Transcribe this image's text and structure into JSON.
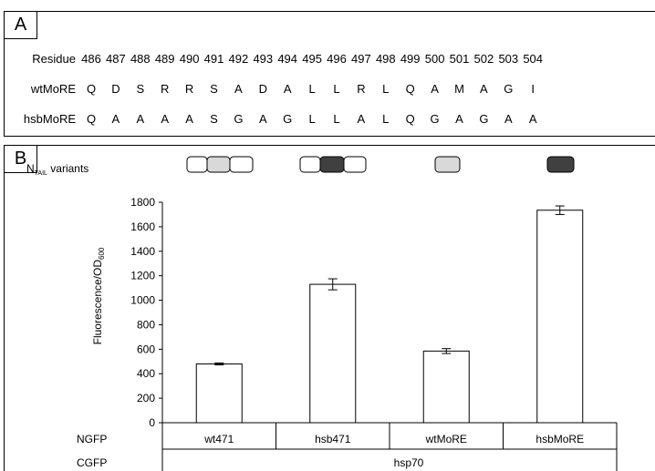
{
  "panel_a": {
    "letter": "A",
    "rows": [
      {
        "label": "Residue",
        "cells": [
          "486",
          "487",
          "488",
          "489",
          "490",
          "491",
          "492",
          "493",
          "494",
          "495",
          "496",
          "497",
          "498",
          "499",
          "500",
          "501",
          "502",
          "503",
          "504"
        ]
      },
      {
        "label": "wtMoRE",
        "cells": [
          "Q",
          "D",
          "S",
          "R",
          "R",
          "S",
          "A",
          "D",
          "A",
          "L",
          "L",
          "R",
          "L",
          "Q",
          "A",
          "M",
          "A",
          "G",
          "I"
        ]
      },
      {
        "label": "hsbMoRE",
        "cells": [
          "Q",
          "A",
          "A",
          "A",
          "A",
          "S",
          "G",
          "A",
          "G",
          "L",
          "L",
          "A",
          "L",
          "Q",
          "G",
          "A",
          "G",
          "A",
          "A"
        ]
      }
    ]
  },
  "panel_b": {
    "letter": "B",
    "legend_label_main": "N",
    "legend_label_sub": "TAIL",
    "legend_label_rest": " variants",
    "ylabel_main": "Fluorescence/OD",
    "ylabel_sub": "600",
    "row_ngfp_label": "NGFP",
    "row_cgfp_label": "CGFP",
    "cgfp_value": "hsp70",
    "variant_colors": {
      "light": "#d9d9d9",
      "dark": "#404040",
      "white": "#ffffff"
    }
  },
  "chart_data": {
    "type": "bar",
    "categories": [
      "wt471",
      "hsb471",
      "wtMoRE",
      "hsbMoRE"
    ],
    "values": [
      480,
      1130,
      585,
      1735
    ],
    "errors": [
      8,
      45,
      20,
      35
    ],
    "ylim": [
      0,
      1800
    ],
    "yticks": [
      "0",
      "200",
      "400",
      "600",
      "800",
      "1000",
      "1200",
      "1400",
      "1600",
      "1800"
    ],
    "grid": false
  }
}
